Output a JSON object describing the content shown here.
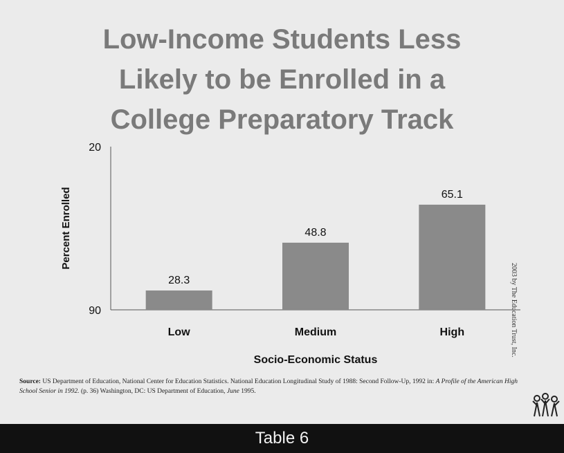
{
  "slide": {
    "title_lines": [
      "Low-Income Students Less",
      "Likely to be Enrolled in a",
      "College Preparatory Track"
    ],
    "source": {
      "label": "Source:",
      "text1": " US Department of Education, National Center for Education Statistics. National Education Longitudinal Study of 1988: Second Follow-Up, 1992 in: ",
      "italic": "A Profile of the American High School Senior in 1992.",
      "text2": " (p. 36) Washington, DC: US Department of Education, ",
      "italic2": "June",
      "text3": " 1995."
    },
    "copyright": "2003 by The Education Trust, Inc.",
    "footer": "Table 6"
  },
  "chart_data": {
    "type": "bar",
    "categories": [
      "Low",
      "Medium",
      "High"
    ],
    "values": [
      28.3,
      48.8,
      65.1
    ],
    "data_labels": [
      "28.3",
      "48.8",
      "65.1"
    ],
    "xlabel": "Socio-Economic Status",
    "ylabel": "Percent Enrolled",
    "ylim": [
      20,
      90
    ],
    "yticks": [
      "20",
      "90"
    ],
    "bar_color": "#8a8a8a",
    "grid": false,
    "legend": "none"
  }
}
